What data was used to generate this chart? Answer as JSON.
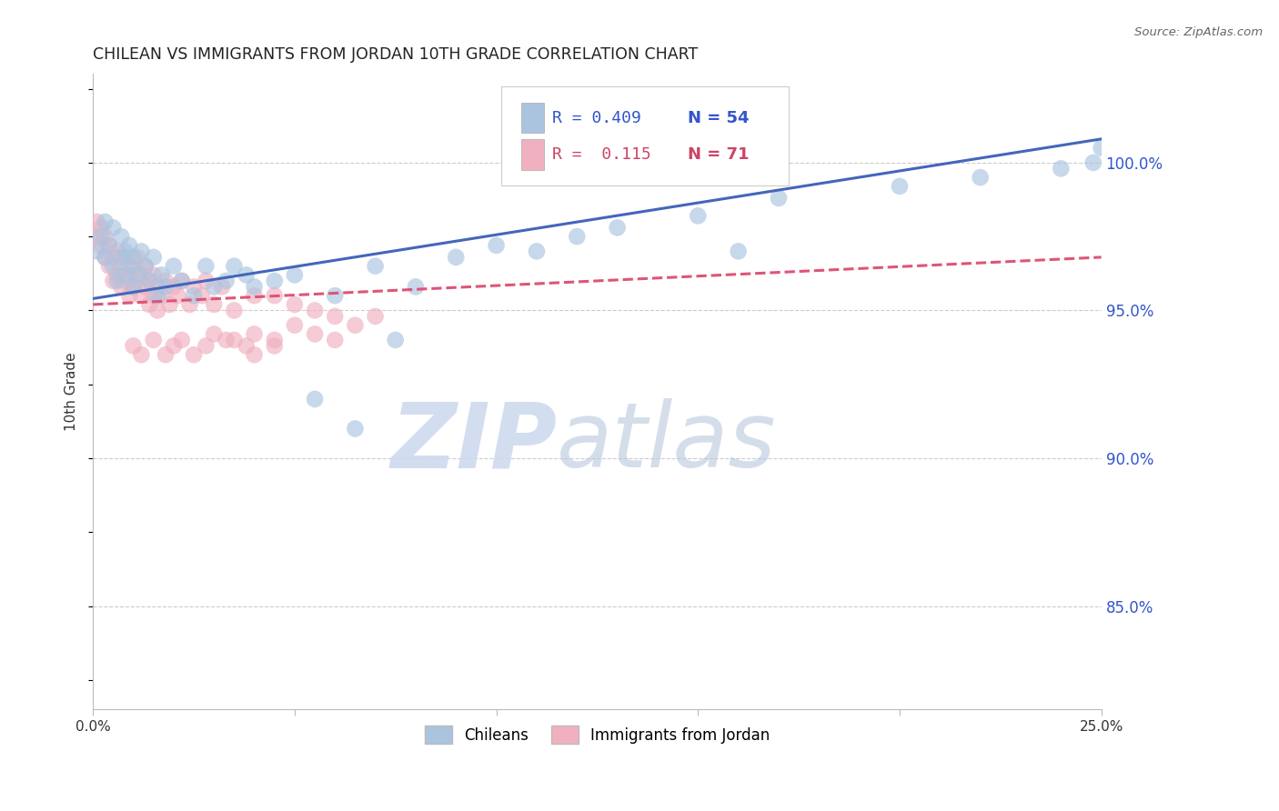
{
  "title": "CHILEAN VS IMMIGRANTS FROM JORDAN 10TH GRADE CORRELATION CHART",
  "source": "Source: ZipAtlas.com",
  "ylabel": "10th Grade",
  "ytick_labels": [
    "100.0%",
    "95.0%",
    "90.0%",
    "85.0%"
  ],
  "ytick_values": [
    1.0,
    0.95,
    0.9,
    0.85
  ],
  "xmin": 0.0,
  "xmax": 0.25,
  "ymin": 0.815,
  "ymax": 1.03,
  "watermark_zip": "ZIP",
  "watermark_atlas": "atlas",
  "legend_R1": "R = 0.409",
  "legend_N1": "N = 54",
  "legend_R2": "R =  0.115",
  "legend_N2": "N = 71",
  "chilean_color": "#aac4e0",
  "jordan_color": "#f0b0bf",
  "trendline_blue": "#4466bb",
  "trendline_pink": "#dd5577",
  "legend_label1": "Chileans",
  "legend_label2": "Immigrants from Jordan",
  "chileans_x": [
    0.001,
    0.002,
    0.003,
    0.003,
    0.004,
    0.005,
    0.005,
    0.006,
    0.007,
    0.007,
    0.008,
    0.008,
    0.009,
    0.009,
    0.01,
    0.01,
    0.011,
    0.012,
    0.013,
    0.014,
    0.015,
    0.016,
    0.017,
    0.018,
    0.02,
    0.022,
    0.025,
    0.028,
    0.03,
    0.033,
    0.035,
    0.038,
    0.04,
    0.045,
    0.05,
    0.06,
    0.07,
    0.08,
    0.09,
    0.1,
    0.11,
    0.12,
    0.13,
    0.15,
    0.17,
    0.2,
    0.22,
    0.24,
    0.248,
    0.25,
    0.055,
    0.065,
    0.075,
    0.16
  ],
  "chileans_y": [
    0.97,
    0.975,
    0.968,
    0.98,
    0.972,
    0.965,
    0.978,
    0.96,
    0.975,
    0.968,
    0.962,
    0.97,
    0.965,
    0.972,
    0.958,
    0.968,
    0.962,
    0.97,
    0.965,
    0.96,
    0.968,
    0.955,
    0.962,
    0.958,
    0.965,
    0.96,
    0.955,
    0.965,
    0.958,
    0.96,
    0.965,
    0.962,
    0.958,
    0.96,
    0.962,
    0.955,
    0.965,
    0.958,
    0.968,
    0.972,
    0.97,
    0.975,
    0.978,
    0.982,
    0.988,
    0.992,
    0.995,
    0.998,
    1.0,
    1.005,
    0.92,
    0.91,
    0.94,
    0.97
  ],
  "jordan_x": [
    0.001,
    0.001,
    0.002,
    0.002,
    0.003,
    0.003,
    0.004,
    0.004,
    0.005,
    0.005,
    0.006,
    0.006,
    0.007,
    0.007,
    0.008,
    0.008,
    0.009,
    0.009,
    0.01,
    0.01,
    0.011,
    0.011,
    0.012,
    0.012,
    0.013,
    0.013,
    0.014,
    0.014,
    0.015,
    0.015,
    0.016,
    0.016,
    0.017,
    0.018,
    0.019,
    0.02,
    0.021,
    0.022,
    0.024,
    0.025,
    0.027,
    0.028,
    0.03,
    0.032,
    0.035,
    0.04,
    0.045,
    0.05,
    0.055,
    0.06,
    0.065,
    0.07,
    0.035,
    0.04,
    0.045,
    0.01,
    0.012,
    0.015,
    0.018,
    0.02,
    0.022,
    0.025,
    0.028,
    0.03,
    0.033,
    0.038,
    0.04,
    0.045,
    0.05,
    0.055,
    0.06
  ],
  "jordan_y": [
    0.975,
    0.98,
    0.972,
    0.978,
    0.968,
    0.975,
    0.965,
    0.972,
    0.96,
    0.968,
    0.962,
    0.97,
    0.958,
    0.965,
    0.96,
    0.968,
    0.955,
    0.962,
    0.958,
    0.965,
    0.96,
    0.968,
    0.955,
    0.962,
    0.958,
    0.965,
    0.952,
    0.96,
    0.955,
    0.962,
    0.95,
    0.958,
    0.955,
    0.96,
    0.952,
    0.958,
    0.955,
    0.96,
    0.952,
    0.958,
    0.955,
    0.96,
    0.952,
    0.958,
    0.95,
    0.955,
    0.955,
    0.952,
    0.95,
    0.948,
    0.945,
    0.948,
    0.94,
    0.942,
    0.938,
    0.938,
    0.935,
    0.94,
    0.935,
    0.938,
    0.94,
    0.935,
    0.938,
    0.942,
    0.94,
    0.938,
    0.935,
    0.94,
    0.945,
    0.942,
    0.94
  ]
}
